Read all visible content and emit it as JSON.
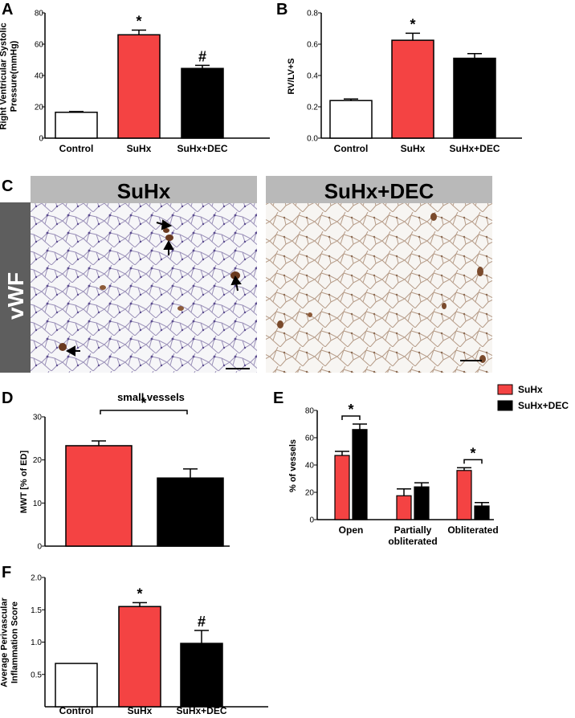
{
  "colors": {
    "red": "#f44343",
    "black": "#000000",
    "white": "#ffffff",
    "grey": "#b9b9b9",
    "dark": "#5e5e5e"
  },
  "panels": {
    "a": "A",
    "b": "B",
    "c": "C",
    "d": "D",
    "e": "E",
    "f": "F"
  },
  "micrograph": {
    "left_title": "SuHx",
    "right_title": "SuHx+DEC",
    "stain": "vWF"
  },
  "chart_data": [
    {
      "id": "A",
      "type": "bar",
      "categories": [
        "Control",
        "SuHx",
        "SuHx+DEC"
      ],
      "values": [
        16.5,
        66,
        44.5
      ],
      "errors": [
        0.5,
        3,
        2
      ],
      "colors": [
        "#ffffff",
        "#f44343",
        "#000000"
      ],
      "ylabel_lines": [
        "Right Ventricular Systolic",
        "Pressure(mmHg)"
      ],
      "ylim": [
        0,
        80
      ],
      "yticks": [
        0,
        20,
        40,
        60,
        80
      ],
      "marks": [
        "",
        "*",
        "#"
      ]
    },
    {
      "id": "B",
      "type": "bar",
      "categories": [
        "Control",
        "SuHx",
        "SuHx+DEC"
      ],
      "values": [
        0.24,
        0.625,
        0.51
      ],
      "errors": [
        0.01,
        0.045,
        0.03
      ],
      "colors": [
        "#ffffff",
        "#f44343",
        "#000000"
      ],
      "ylabel_lines": [
        "RV/LV+S"
      ],
      "ylim": [
        0,
        0.8
      ],
      "yticks": [
        "0.0",
        "0.2",
        "0.4",
        "0.6",
        "0.8"
      ],
      "marks": [
        "",
        "*",
        ""
      ]
    },
    {
      "id": "D",
      "type": "bar",
      "title": "small vessels",
      "categories": [
        "SuHx",
        "SuHx+DEC"
      ],
      "values": [
        23.3,
        15.8
      ],
      "errors": [
        1.1,
        2.1
      ],
      "colors": [
        "#f44343",
        "#000000"
      ],
      "ylabel_lines": [
        "MWT [% of ED]"
      ],
      "ylim": [
        0,
        30
      ],
      "yticks": [
        0,
        10,
        20,
        30
      ],
      "bracket_sig": "*"
    },
    {
      "id": "E",
      "type": "bar",
      "categories": [
        "Open",
        "Partially obliterated",
        "Obliterated"
      ],
      "category_lines": [
        [
          "Open"
        ],
        [
          "Partially",
          "obliterated"
        ],
        [
          "Obliterated"
        ]
      ],
      "series": [
        {
          "name": "SuHx",
          "color": "#f44343",
          "values": [
            47,
            17.5,
            36
          ],
          "errors": [
            3,
            5,
            2
          ]
        },
        {
          "name": "SuHx+DEC",
          "color": "#000000",
          "values": [
            66,
            24,
            10
          ],
          "errors": [
            4,
            3,
            2.5
          ]
        }
      ],
      "ylabel_lines": [
        "% of vessels"
      ],
      "ylim": [
        0,
        80
      ],
      "yticks": [
        0,
        20,
        40,
        60,
        80
      ],
      "bracket_sig": [
        "*",
        "",
        "*"
      ]
    },
    {
      "id": "F",
      "type": "bar",
      "categories": [
        "Control",
        "SuHx",
        "SuHx+DEC"
      ],
      "values": [
        0.67,
        1.55,
        0.98
      ],
      "errors": [
        0,
        0.06,
        0.2
      ],
      "colors": [
        "#ffffff",
        "#f44343",
        "#000000"
      ],
      "ylabel_lines": [
        "Average Perivascular",
        "Inflammation Score"
      ],
      "ylim": [
        0,
        2.0
      ],
      "yticks": [
        "0.5",
        "1.0",
        "1.5",
        "2.0"
      ],
      "ytick_values": [
        0.5,
        1.0,
        1.5,
        2.0
      ],
      "marks": [
        "",
        "*",
        "#"
      ]
    }
  ]
}
